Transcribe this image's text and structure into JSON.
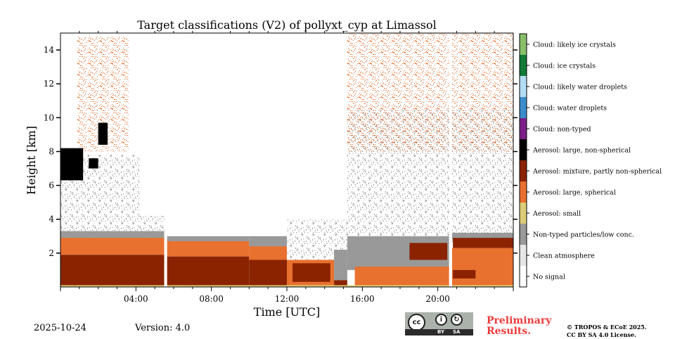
{
  "chart_data": {
    "type": "heatmap",
    "title": "Target classifications (V2) of pollyxt_cyp at Limassol",
    "xlabel": "Time [UTC]",
    "ylabel": "Height [km]",
    "xlim_hours": [
      0,
      24
    ],
    "ylim_km": [
      0,
      15
    ],
    "xticks": [
      {
        "v": 4,
        "label": "04:00"
      },
      {
        "v": 8,
        "label": "08:00"
      },
      {
        "v": 12,
        "label": "12:00"
      },
      {
        "v": 16,
        "label": "16:00"
      },
      {
        "v": 20,
        "label": "20:00"
      }
    ],
    "yticks": [
      {
        "v": 2,
        "label": "2"
      },
      {
        "v": 4,
        "label": "4"
      },
      {
        "v": 6,
        "label": "6"
      },
      {
        "v": 8,
        "label": "8"
      },
      {
        "v": 10,
        "label": "10"
      },
      {
        "v": 12,
        "label": "12"
      },
      {
        "v": 14,
        "label": "14"
      }
    ],
    "classes": [
      {
        "label": "No signal",
        "color": "#ffffff"
      },
      {
        "label": "Clean atmosphere",
        "color": "#e6e6e6"
      },
      {
        "label": "Non-typed particles/low conc.",
        "color": "#999999"
      },
      {
        "label": "Aerosol: small",
        "color": "#ddcc77"
      },
      {
        "label": "Aerosol: large, spherical",
        "color": "#e8712f"
      },
      {
        "label": "Aerosol: mixture, partly non-spherical",
        "color": "#8b2300"
      },
      {
        "label": "Aerosol: large, non-spherical",
        "color": "#000000"
      },
      {
        "label": "Cloud: non-typed",
        "color": "#7b1f86"
      },
      {
        "label": "Cloud: water droplets",
        "color": "#3c8ccc"
      },
      {
        "label": "Cloud: likely water droplets",
        "color": "#b3ddf5"
      },
      {
        "label": "Cloud: ice crystals",
        "color": "#117a37"
      },
      {
        "label": "Cloud: likely ice crystals",
        "color": "#88bf6a"
      }
    ],
    "regions": [
      {
        "c": 2,
        "speckle": true,
        "t": [
          0,
          4.2
        ],
        "h": [
          3.3,
          7.8
        ]
      },
      {
        "c": 2,
        "speckle": true,
        "t": [
          4.2,
          5.5
        ],
        "h": [
          3.2,
          4.2
        ]
      },
      {
        "c": 4,
        "speckle": true,
        "t": [
          0.9,
          3.6
        ],
        "h": [
          8,
          14.8
        ]
      },
      {
        "c": 2,
        "t": [
          0,
          5.5
        ],
        "h": [
          2.8,
          3.3
        ]
      },
      {
        "c": 4,
        "t": [
          0,
          5.5
        ],
        "h": [
          1.9,
          2.9
        ]
      },
      {
        "c": 5,
        "t": [
          0,
          5.5
        ],
        "h": [
          0.1,
          1.9
        ]
      },
      {
        "c": 6,
        "t": [
          0,
          1.2
        ],
        "h": [
          6.3,
          8.2
        ]
      },
      {
        "c": 6,
        "t": [
          1.5,
          2.0
        ],
        "h": [
          7.0,
          7.6
        ]
      },
      {
        "c": 6,
        "t": [
          2.0,
          2.5
        ],
        "h": [
          8.4,
          9.7
        ]
      },
      {
        "c": 2,
        "t": [
          5.65,
          10
        ],
        "h": [
          2.6,
          3.0
        ]
      },
      {
        "c": 4,
        "t": [
          5.65,
          10
        ],
        "h": [
          1.8,
          2.7
        ]
      },
      {
        "c": 5,
        "t": [
          5.65,
          10
        ],
        "h": [
          0.1,
          1.8
        ]
      },
      {
        "c": 2,
        "t": [
          10,
          12
        ],
        "h": [
          2.3,
          3.0
        ]
      },
      {
        "c": 4,
        "t": [
          10,
          12
        ],
        "h": [
          1.5,
          2.4
        ]
      },
      {
        "c": 5,
        "t": [
          10,
          12
        ],
        "h": [
          0.1,
          1.6
        ]
      },
      {
        "c": 2,
        "speckle": true,
        "t": [
          12,
          15.2
        ],
        "h": [
          1.5,
          4
        ]
      },
      {
        "c": 4,
        "t": [
          12,
          14.5
        ],
        "h": [
          0.1,
          1.6
        ]
      },
      {
        "c": 5,
        "t": [
          12.3,
          14.3
        ],
        "h": [
          0.3,
          1.4
        ]
      },
      {
        "c": 2,
        "t": [
          14.5,
          15.2
        ],
        "h": [
          0.4,
          2.2
        ]
      },
      {
        "c": 5,
        "t": [
          14.5,
          15.2
        ],
        "h": [
          0.1,
          0.4
        ]
      },
      {
        "c": 2,
        "speckle": true,
        "t": [
          15.2,
          24
        ],
        "h": [
          2.5,
          10.5
        ]
      },
      {
        "c": 4,
        "speckle": true,
        "t": [
          15.2,
          24
        ],
        "h": [
          8,
          15
        ]
      },
      {
        "c": 2,
        "t": [
          15.2,
          20.6
        ],
        "h": [
          1.0,
          3.0
        ]
      },
      {
        "c": 4,
        "t": [
          15.6,
          20.6
        ],
        "h": [
          0.1,
          1.2
        ]
      },
      {
        "c": 5,
        "t": [
          18.5,
          20.5
        ],
        "h": [
          1.6,
          2.6
        ]
      },
      {
        "c": 2,
        "t": [
          20.75,
          24
        ],
        "h": [
          2.8,
          3.2
        ]
      },
      {
        "c": 4,
        "t": [
          20.75,
          24
        ],
        "h": [
          0.1,
          2.3
        ]
      },
      {
        "c": 5,
        "t": [
          20.8,
          24
        ],
        "h": [
          2.3,
          2.9
        ]
      },
      {
        "c": 5,
        "t": [
          20.8,
          22
        ],
        "h": [
          0.5,
          1.0
        ]
      },
      {
        "c": 3,
        "t": [
          0,
          24
        ],
        "h": [
          0,
          0.1
        ]
      },
      {
        "c": 0,
        "t": [
          5.5,
          5.65
        ],
        "h": [
          0,
          15
        ]
      },
      {
        "c": 0,
        "t": [
          20.6,
          20.75
        ],
        "h": [
          0,
          15
        ]
      }
    ]
  },
  "footer": {
    "date": "2025-10-24",
    "version": "Version: 4.0",
    "cc_by": "BY",
    "cc_sa": "SA",
    "cc_text": "cc",
    "preliminary_line1": "Preliminary",
    "preliminary_line2": "Results.",
    "copyright_line1": "© TROPOS & ECoE 2025.",
    "copyright_line2": "CC BY SA 4.0 License."
  }
}
